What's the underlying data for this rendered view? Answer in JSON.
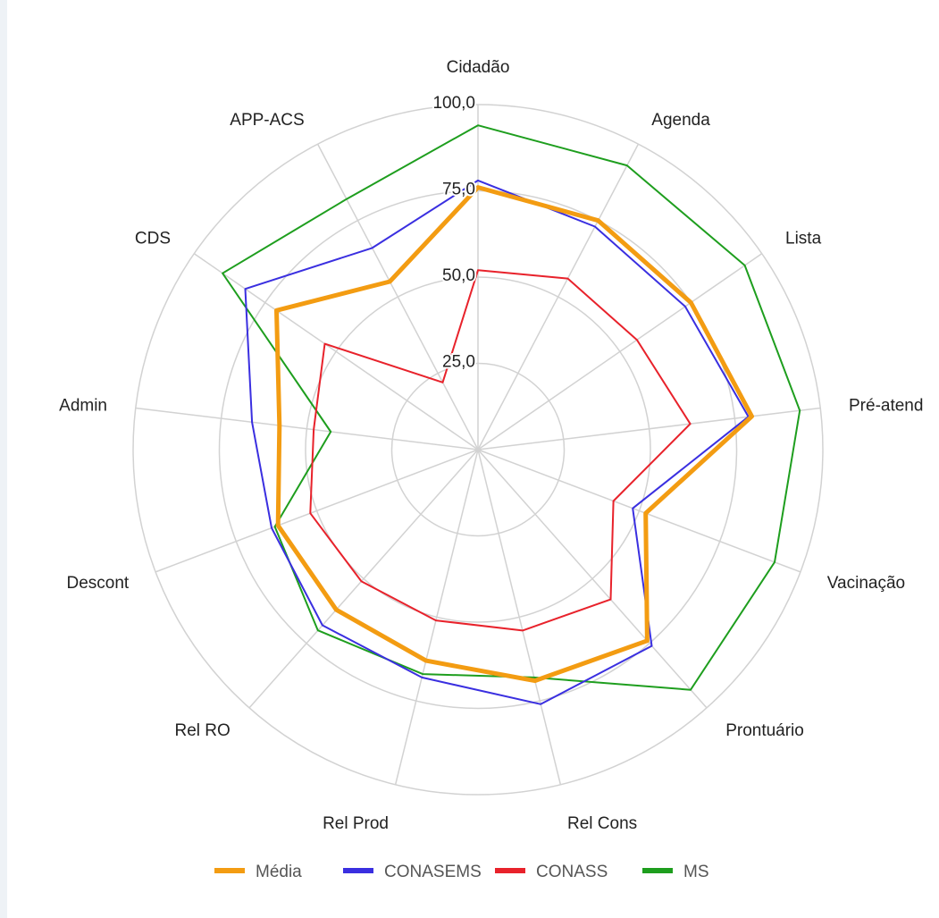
{
  "chart_data": {
    "type": "radar",
    "axes": [
      "Cidadão",
      "Agenda",
      "Lista",
      "Pré-atend",
      "Vacinação",
      "Prontuário",
      "Rel Cons",
      "Rel Prod",
      "Rel RO",
      "Descont",
      "Admin",
      "CDS",
      "APP-ACS"
    ],
    "ticks": [
      "25,0",
      "50,0",
      "75,0",
      "100,0"
    ],
    "rlim": [
      0,
      100
    ],
    "grid": true,
    "legend_position": "bottom",
    "series": [
      {
        "name": "Média",
        "color": "#f39c12",
        "width": 5,
        "values": [
          76,
          75,
          75,
          80,
          52,
          74,
          69,
          63,
          62,
          62,
          58,
          71,
          55
        ]
      },
      {
        "name": "CONASEMS",
        "color": "#3a2fe0",
        "width": 2,
        "values": [
          78,
          73,
          73,
          79,
          48,
          76,
          76,
          68,
          68,
          64,
          66,
          82,
          66
        ]
      },
      {
        "name": "CONASS",
        "color": "#e8222b",
        "width": 2,
        "values": [
          52,
          56,
          56,
          62,
          42,
          58,
          54,
          51,
          51,
          52,
          48,
          54,
          22
        ]
      },
      {
        "name": "MS",
        "color": "#1e9e1e",
        "width": 2,
        "values": [
          94,
          93,
          94,
          94,
          92,
          93,
          68,
          67,
          70,
          63,
          43,
          90,
          82
        ]
      }
    ]
  }
}
